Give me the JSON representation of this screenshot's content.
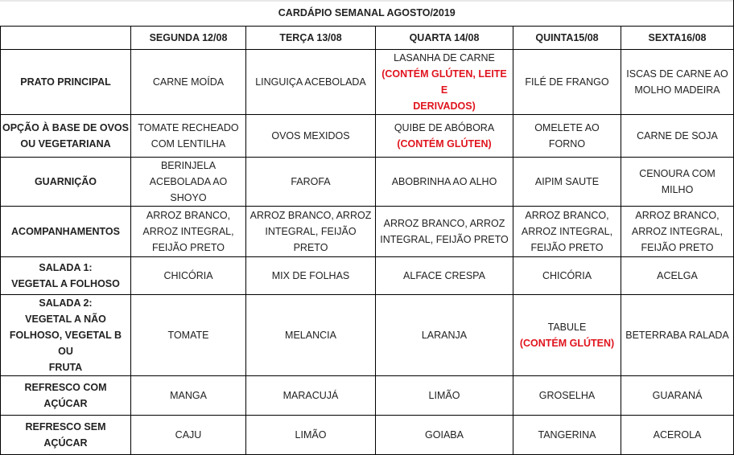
{
  "title": "CARDÁPIO SEMANAL AGOSTO/2019",
  "days": [
    "SEGUNDA   12/08",
    "TERÇA 13/08",
    "QUARTA 14/08",
    "QUINTA15/08",
    "SEXTA16/08"
  ],
  "rows": [
    {
      "label": "PRATO PRINCIPAL",
      "cells": [
        {
          "text": "CARNE MOÍDA"
        },
        {
          "text": "LINGUIÇA ACEBOLADA"
        },
        {
          "text": "LASANHA DE CARNE",
          "note": "(CONTÉM GLÚTEN, LEITE E\nDERIVADOS)"
        },
        {
          "text": "FILÉ DE FRANGO"
        },
        {
          "text": "ISCAS DE CARNE AO\nMOLHO MADEIRA"
        }
      ]
    },
    {
      "label": "OPÇÃO À BASE DE OVOS\nOU VEGETARIANA",
      "cells": [
        {
          "text": "TOMATE RECHEADO\nCOM LENTILHA"
        },
        {
          "text": "OVOS MEXIDOS"
        },
        {
          "text": "QUIBE DE ABÓBORA",
          "note": "(CONTÉM GLÚTEN)"
        },
        {
          "text": "OMELETE AO\nFORNO"
        },
        {
          "text": "CARNE DE SOJA"
        }
      ]
    },
    {
      "label": "GUARNIÇÃO",
      "cells": [
        {
          "text": "BERINJELA\nACEBOLADA AO\nSHOYO"
        },
        {
          "text": "FAROFA"
        },
        {
          "text": "ABOBRINHA AO ALHO"
        },
        {
          "text": "AIPIM SAUTE"
        },
        {
          "text": "CENOURA COM\nMILHO"
        }
      ]
    },
    {
      "label": "ACOMPANHAMENTOS",
      "cells": [
        {
          "text": "ARROZ BRANCO,\nARROZ INTEGRAL,\nFEIJÃO PRETO"
        },
        {
          "text": "ARROZ BRANCO, ARROZ\nINTEGRAL, FEIJÃO PRETO"
        },
        {
          "text": "ARROZ BRANCO, ARROZ\nINTEGRAL, FEIJÃO PRETO"
        },
        {
          "text": "ARROZ BRANCO,\nARROZ INTEGRAL,\nFEIJÃO PRETO"
        },
        {
          "text": "ARROZ BRANCO,\nARROZ INTEGRAL,\nFEIJÃO PRETO"
        }
      ]
    },
    {
      "label": "SALADA 1:\nVEGETAL A FOLHOSO",
      "cells": [
        {
          "text": "CHICÓRIA"
        },
        {
          "text": "MIX DE FOLHAS"
        },
        {
          "text": "ALFACE  CRESPA"
        },
        {
          "text": "CHICÓRIA"
        },
        {
          "text": "ACELGA"
        }
      ]
    },
    {
      "label": "SALADA 2:\nVEGETAL A NÃO\nFOLHOSO, VEGETAL B OU\nFRUTA",
      "cells": [
        {
          "text": "TOMATE"
        },
        {
          "text": "MELANCIA"
        },
        {
          "text": "LARANJA"
        },
        {
          "text": "TABULE",
          "note": "(CONTÉM GLÚTEN)"
        },
        {
          "text": "BETERRABA RALADA"
        }
      ]
    },
    {
      "label": "REFRESCO COM AÇÚCAR",
      "cells": [
        {
          "text": "MANGA"
        },
        {
          "text": "MARACUJÁ"
        },
        {
          "text": "LIMÃO"
        },
        {
          "text": "GROSELHA"
        },
        {
          "text": "GUARANÁ"
        }
      ]
    },
    {
      "label": "REFRESCO SEM AÇÚCAR",
      "cells": [
        {
          "text": "CAJU"
        },
        {
          "text": "LIMÃO"
        },
        {
          "text": "GOIABA"
        },
        {
          "text": "TANGERINA"
        },
        {
          "text": "ACEROLA"
        }
      ]
    }
  ],
  "colors": {
    "allergen_note": "#e0141e",
    "border": "#000000"
  }
}
